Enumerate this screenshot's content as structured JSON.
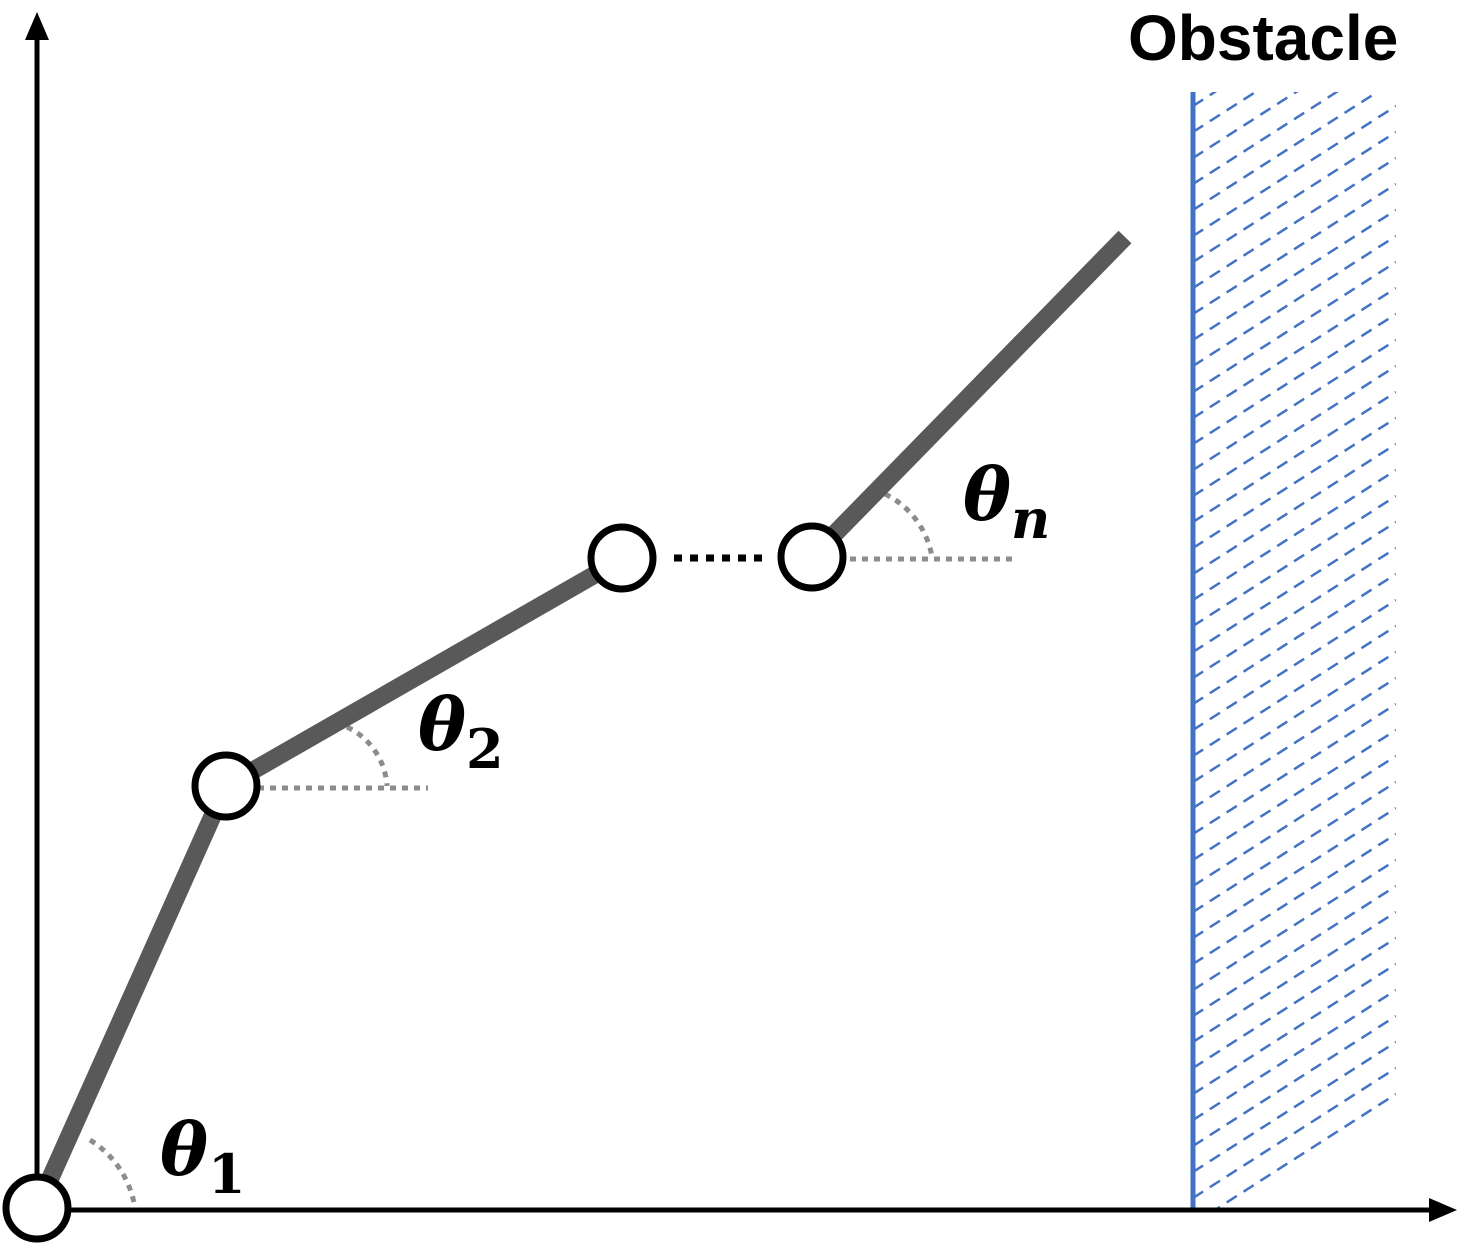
{
  "obstacle": {
    "label": "Obstacle",
    "color": "#4472C4"
  },
  "angles": [
    {
      "symbol": "θ",
      "subscript": "1"
    },
    {
      "symbol": "θ",
      "subscript": "2"
    },
    {
      "symbol": "θ",
      "subscript": "n"
    }
  ],
  "colors": {
    "link": "#595959",
    "joint_stroke": "#000000",
    "angle_guide": "#8c8c8c",
    "axes": "#000000"
  }
}
